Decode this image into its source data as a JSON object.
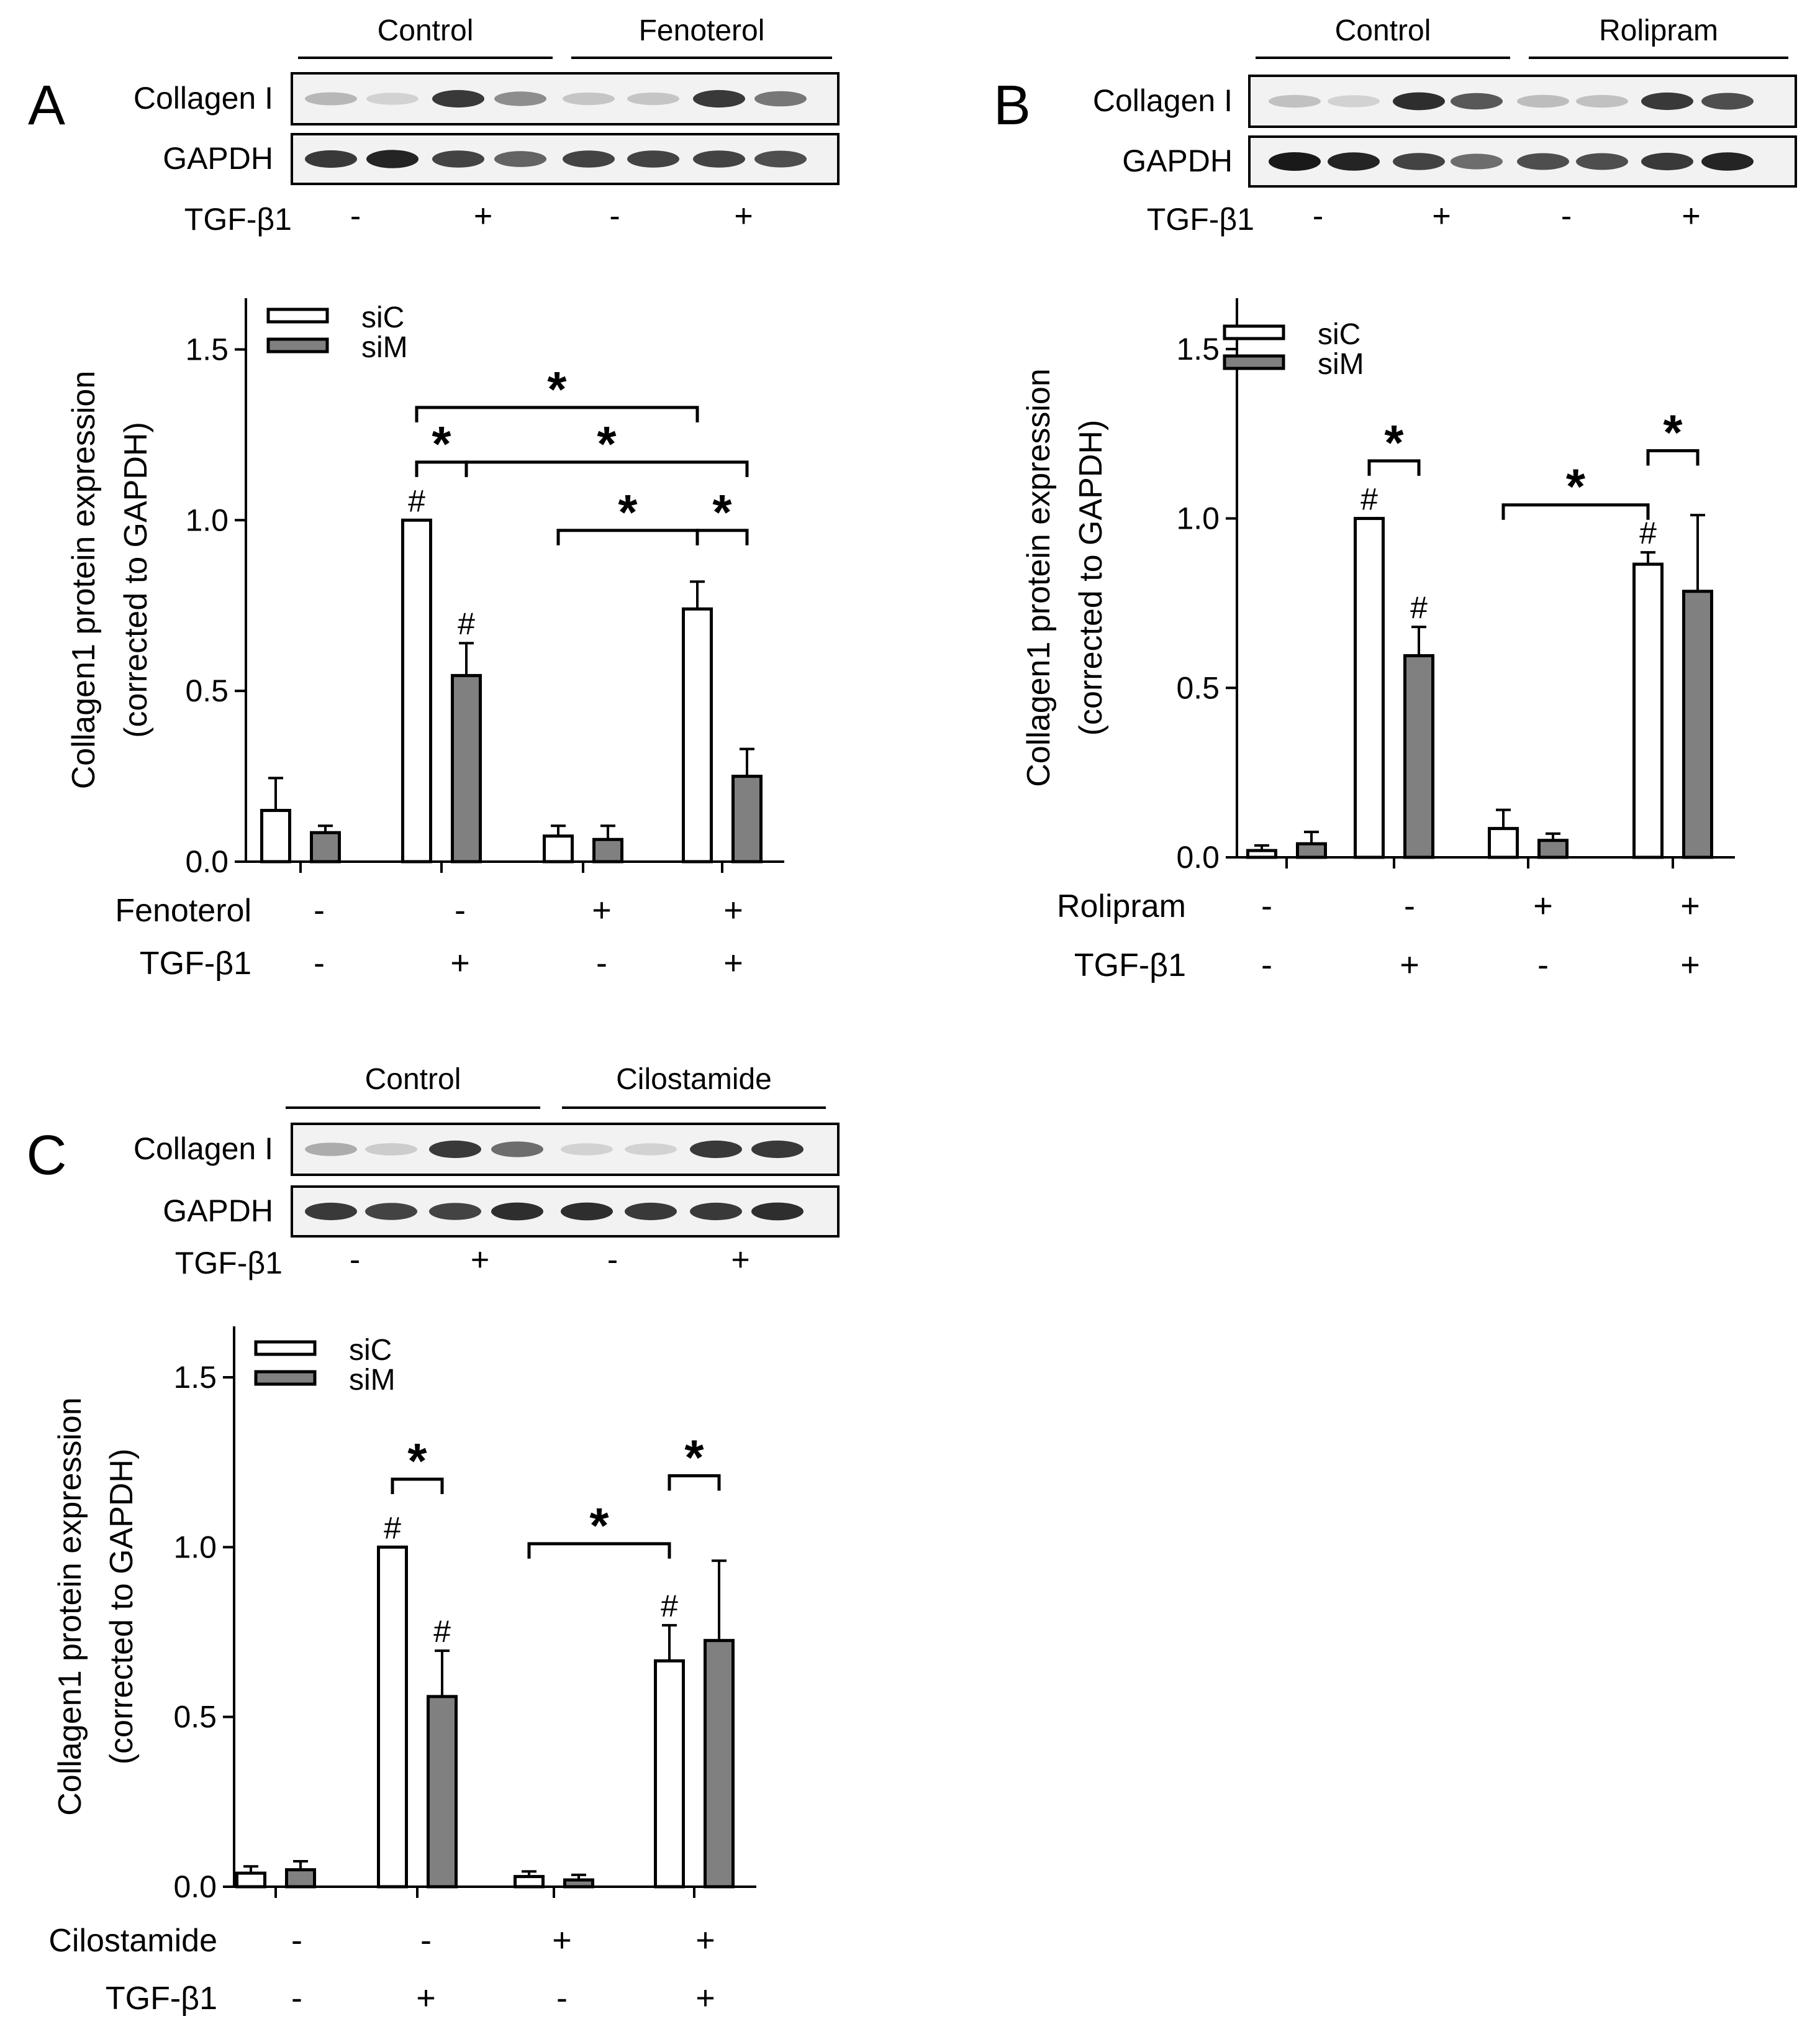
{
  "panels": [
    {
      "letter": "A",
      "blot": {
        "groups": [
          "Control",
          "Fenoterol"
        ],
        "rows": [
          "Collagen I",
          "GAPDH"
        ],
        "tgf_label": "TGF-β1",
        "tgf_signs": [
          "-",
          "+",
          "-",
          "+"
        ],
        "bands": {
          "Collagen I": [
            0.25,
            0.12,
            0.85,
            0.45,
            0.18,
            0.18,
            0.85,
            0.55
          ],
          "GAPDH": [
            0.85,
            0.95,
            0.8,
            0.65,
            0.8,
            0.8,
            0.8,
            0.75
          ]
        }
      }
    },
    {
      "letter": "B",
      "blot": {
        "groups": [
          "Control",
          "Rolipram"
        ],
        "rows": [
          "Collagen I",
          "GAPDH"
        ],
        "tgf_label": "TGF-β1",
        "tgf_signs": [
          "-",
          "+",
          "-",
          "+"
        ],
        "bands": {
          "Collagen I": [
            0.2,
            0.12,
            0.9,
            0.7,
            0.22,
            0.2,
            0.85,
            0.75
          ],
          "GAPDH": [
            1.0,
            0.95,
            0.8,
            0.6,
            0.75,
            0.75,
            0.85,
            0.95
          ]
        }
      }
    },
    {
      "letter": "C",
      "blot": {
        "groups": [
          "Control",
          "Cilostamide"
        ],
        "rows": [
          "Collagen I",
          "GAPDH"
        ],
        "tgf_label": "TGF-β1",
        "tgf_signs": [
          "-",
          "+",
          "-",
          "+"
        ],
        "bands": {
          "Collagen I": [
            0.3,
            0.15,
            0.85,
            0.6,
            0.12,
            0.12,
            0.85,
            0.85
          ],
          "GAPDH": [
            0.85,
            0.8,
            0.8,
            0.9,
            0.9,
            0.85,
            0.85,
            0.9
          ]
        }
      }
    }
  ],
  "chart_data": [
    {
      "type": "bar",
      "panel": "A",
      "ylabel": "Collagen1 protein expression",
      "ylabel2": "(corrected to GAPDH)",
      "ylim": [
        0,
        1.65
      ],
      "yticks": [
        "0.0",
        "0.5",
        "1.0",
        "1.5"
      ],
      "legend_position": "top-left",
      "series": [
        {
          "name": "siC",
          "values": [
            0.15,
            1.0,
            0.075,
            0.74
          ],
          "errors": [
            0.095,
            0,
            0.03,
            0.08
          ],
          "color": "#ffffff"
        },
        {
          "name": "siM",
          "values": [
            0.085,
            0.545,
            0.065,
            0.25
          ],
          "errors": [
            0.02,
            0.095,
            0.04,
            0.08
          ],
          "color": "#808080"
        }
      ],
      "hash_marks": [
        [
          1,
          0
        ],
        [
          1,
          1
        ]
      ],
      "condition_rows": [
        {
          "label": "Fenoterol",
          "signs": [
            "-",
            "-",
            "+",
            "+"
          ]
        },
        {
          "label": "TGF-β1",
          "signs": [
            "-",
            "+",
            "-",
            "+"
          ]
        }
      ],
      "significance": [
        {
          "from": [
            1,
            0
          ],
          "to": [
            3,
            0
          ],
          "y": 1.33,
          "label": "*"
        },
        {
          "from": [
            1,
            0
          ],
          "to": [
            1,
            1
          ],
          "y": 1.17,
          "label": "*"
        },
        {
          "from": [
            1,
            1
          ],
          "to": [
            3,
            1
          ],
          "y": 1.17,
          "label": "*"
        },
        {
          "from": [
            2,
            0
          ],
          "to": [
            3,
            0
          ],
          "y": 0.97,
          "label": "*"
        },
        {
          "from": [
            3,
            0
          ],
          "to": [
            3,
            1
          ],
          "y": 0.97,
          "label": "*"
        }
      ]
    },
    {
      "type": "bar",
      "panel": "B",
      "ylabel": "Collagen1 protein expression",
      "ylabel2": "(corrected to GAPDH)",
      "ylim": [
        0,
        1.65
      ],
      "yticks": [
        "0.0",
        "0.5",
        "1.0",
        "1.5"
      ],
      "legend_position": "top-left",
      "series": [
        {
          "name": "siC",
          "values": [
            0.02,
            1.0,
            0.085,
            0.865
          ],
          "errors": [
            0.015,
            0,
            0.055,
            0.035
          ],
          "color": "#ffffff"
        },
        {
          "name": "siM",
          "values": [
            0.04,
            0.595,
            0.05,
            0.785
          ],
          "errors": [
            0.035,
            0.085,
            0.02,
            0.225
          ],
          "color": "#808080"
        }
      ],
      "hash_marks": [
        [
          1,
          0
        ],
        [
          1,
          1
        ],
        [
          3,
          0
        ]
      ],
      "condition_rows": [
        {
          "label": "Rolipram",
          "signs": [
            "-",
            "-",
            "+",
            "+"
          ]
        },
        {
          "label": "TGF-β1",
          "signs": [
            "-",
            "+",
            "-",
            "+"
          ]
        }
      ],
      "significance": [
        {
          "from": [
            1,
            0
          ],
          "to": [
            1,
            1
          ],
          "y": 1.17,
          "label": "*"
        },
        {
          "from": [
            2,
            0
          ],
          "to": [
            3,
            0
          ],
          "y": 1.04,
          "label": "*"
        },
        {
          "from": [
            3,
            0
          ],
          "to": [
            3,
            1
          ],
          "y": 1.2,
          "label": "*"
        }
      ]
    },
    {
      "type": "bar",
      "panel": "C",
      "ylabel": "Collagen1 protein expression",
      "ylabel2": "(corrected to GAPDH)",
      "ylim": [
        0,
        1.65
      ],
      "yticks": [
        "0.0",
        "0.5",
        "1.0",
        "1.5"
      ],
      "legend_position": "top-left",
      "series": [
        {
          "name": "siC",
          "values": [
            0.04,
            1.0,
            0.03,
            0.665
          ],
          "errors": [
            0.02,
            0,
            0.015,
            0.105
          ],
          "color": "#ffffff"
        },
        {
          "name": "siM",
          "values": [
            0.05,
            0.56,
            0.02,
            0.725
          ],
          "errors": [
            0.025,
            0.135,
            0.015,
            0.235
          ],
          "color": "#808080"
        }
      ],
      "hash_marks": [
        [
          1,
          0
        ],
        [
          1,
          1
        ],
        [
          3,
          0
        ]
      ],
      "condition_rows": [
        {
          "label": "Cilostamide",
          "signs": [
            "-",
            "-",
            "+",
            "+"
          ]
        },
        {
          "label": "TGF-β1",
          "signs": [
            "-",
            "+",
            "-",
            "+"
          ]
        }
      ],
      "significance": [
        {
          "from": [
            1,
            0
          ],
          "to": [
            1,
            1
          ],
          "y": 1.2,
          "label": "*"
        },
        {
          "from": [
            2,
            0
          ],
          "to": [
            3,
            0
          ],
          "y": 1.01,
          "label": "*"
        },
        {
          "from": [
            3,
            0
          ],
          "to": [
            3,
            1
          ],
          "y": 1.21,
          "label": "*"
        }
      ]
    }
  ]
}
